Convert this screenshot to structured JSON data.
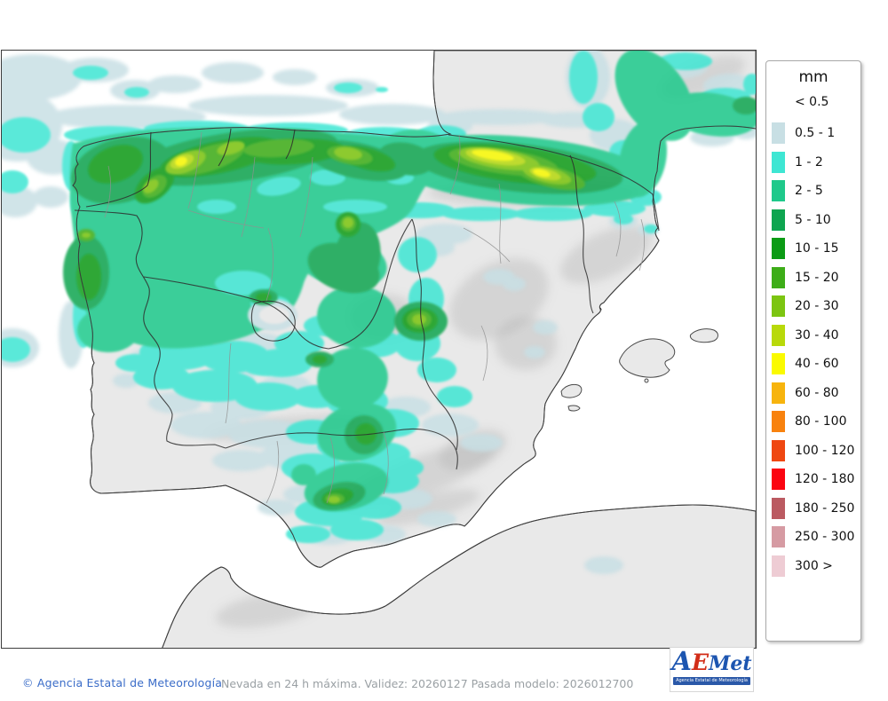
{
  "map": {
    "caption": "Nevada en 24 h máxima. Validez: 20260127 Pasada modelo: 2026012700",
    "copyright": "© Agencia Estatal de Meteorología"
  },
  "legend": {
    "title": "mm",
    "no_color_label": "< 0.5",
    "items": [
      {
        "label": "0.5 - 1",
        "color": "#c8dfe4"
      },
      {
        "label": "1 - 2",
        "color": "#3ee6d3"
      },
      {
        "label": "2 - 5",
        "color": "#1fc98b"
      },
      {
        "label": "5 - 10",
        "color": "#0ea550"
      },
      {
        "label": "10 - 15",
        "color": "#0b9b15"
      },
      {
        "label": "15 - 20",
        "color": "#3dad18"
      },
      {
        "label": "20 - 30",
        "color": "#7cc511"
      },
      {
        "label": "30 - 40",
        "color": "#b8d90a"
      },
      {
        "label": "40 - 60",
        "color": "#fafa00"
      },
      {
        "label": "60 - 80",
        "color": "#f7b40d"
      },
      {
        "label": "80 - 100",
        "color": "#f8820e"
      },
      {
        "label": "100 - 120",
        "color": "#ef4711"
      },
      {
        "label": "120 - 180",
        "color": "#fb0511"
      },
      {
        "label": "180 - 250",
        "color": "#bb5a61"
      },
      {
        "label": "250 - 300",
        "color": "#d69ba3"
      },
      {
        "label": "300 >",
        "color": "#eeccd4"
      }
    ]
  },
  "logo": {
    "a": "A",
    "e": "E",
    "met": "Met",
    "subtitle": "Agencia Estatal de Meteorología"
  }
}
